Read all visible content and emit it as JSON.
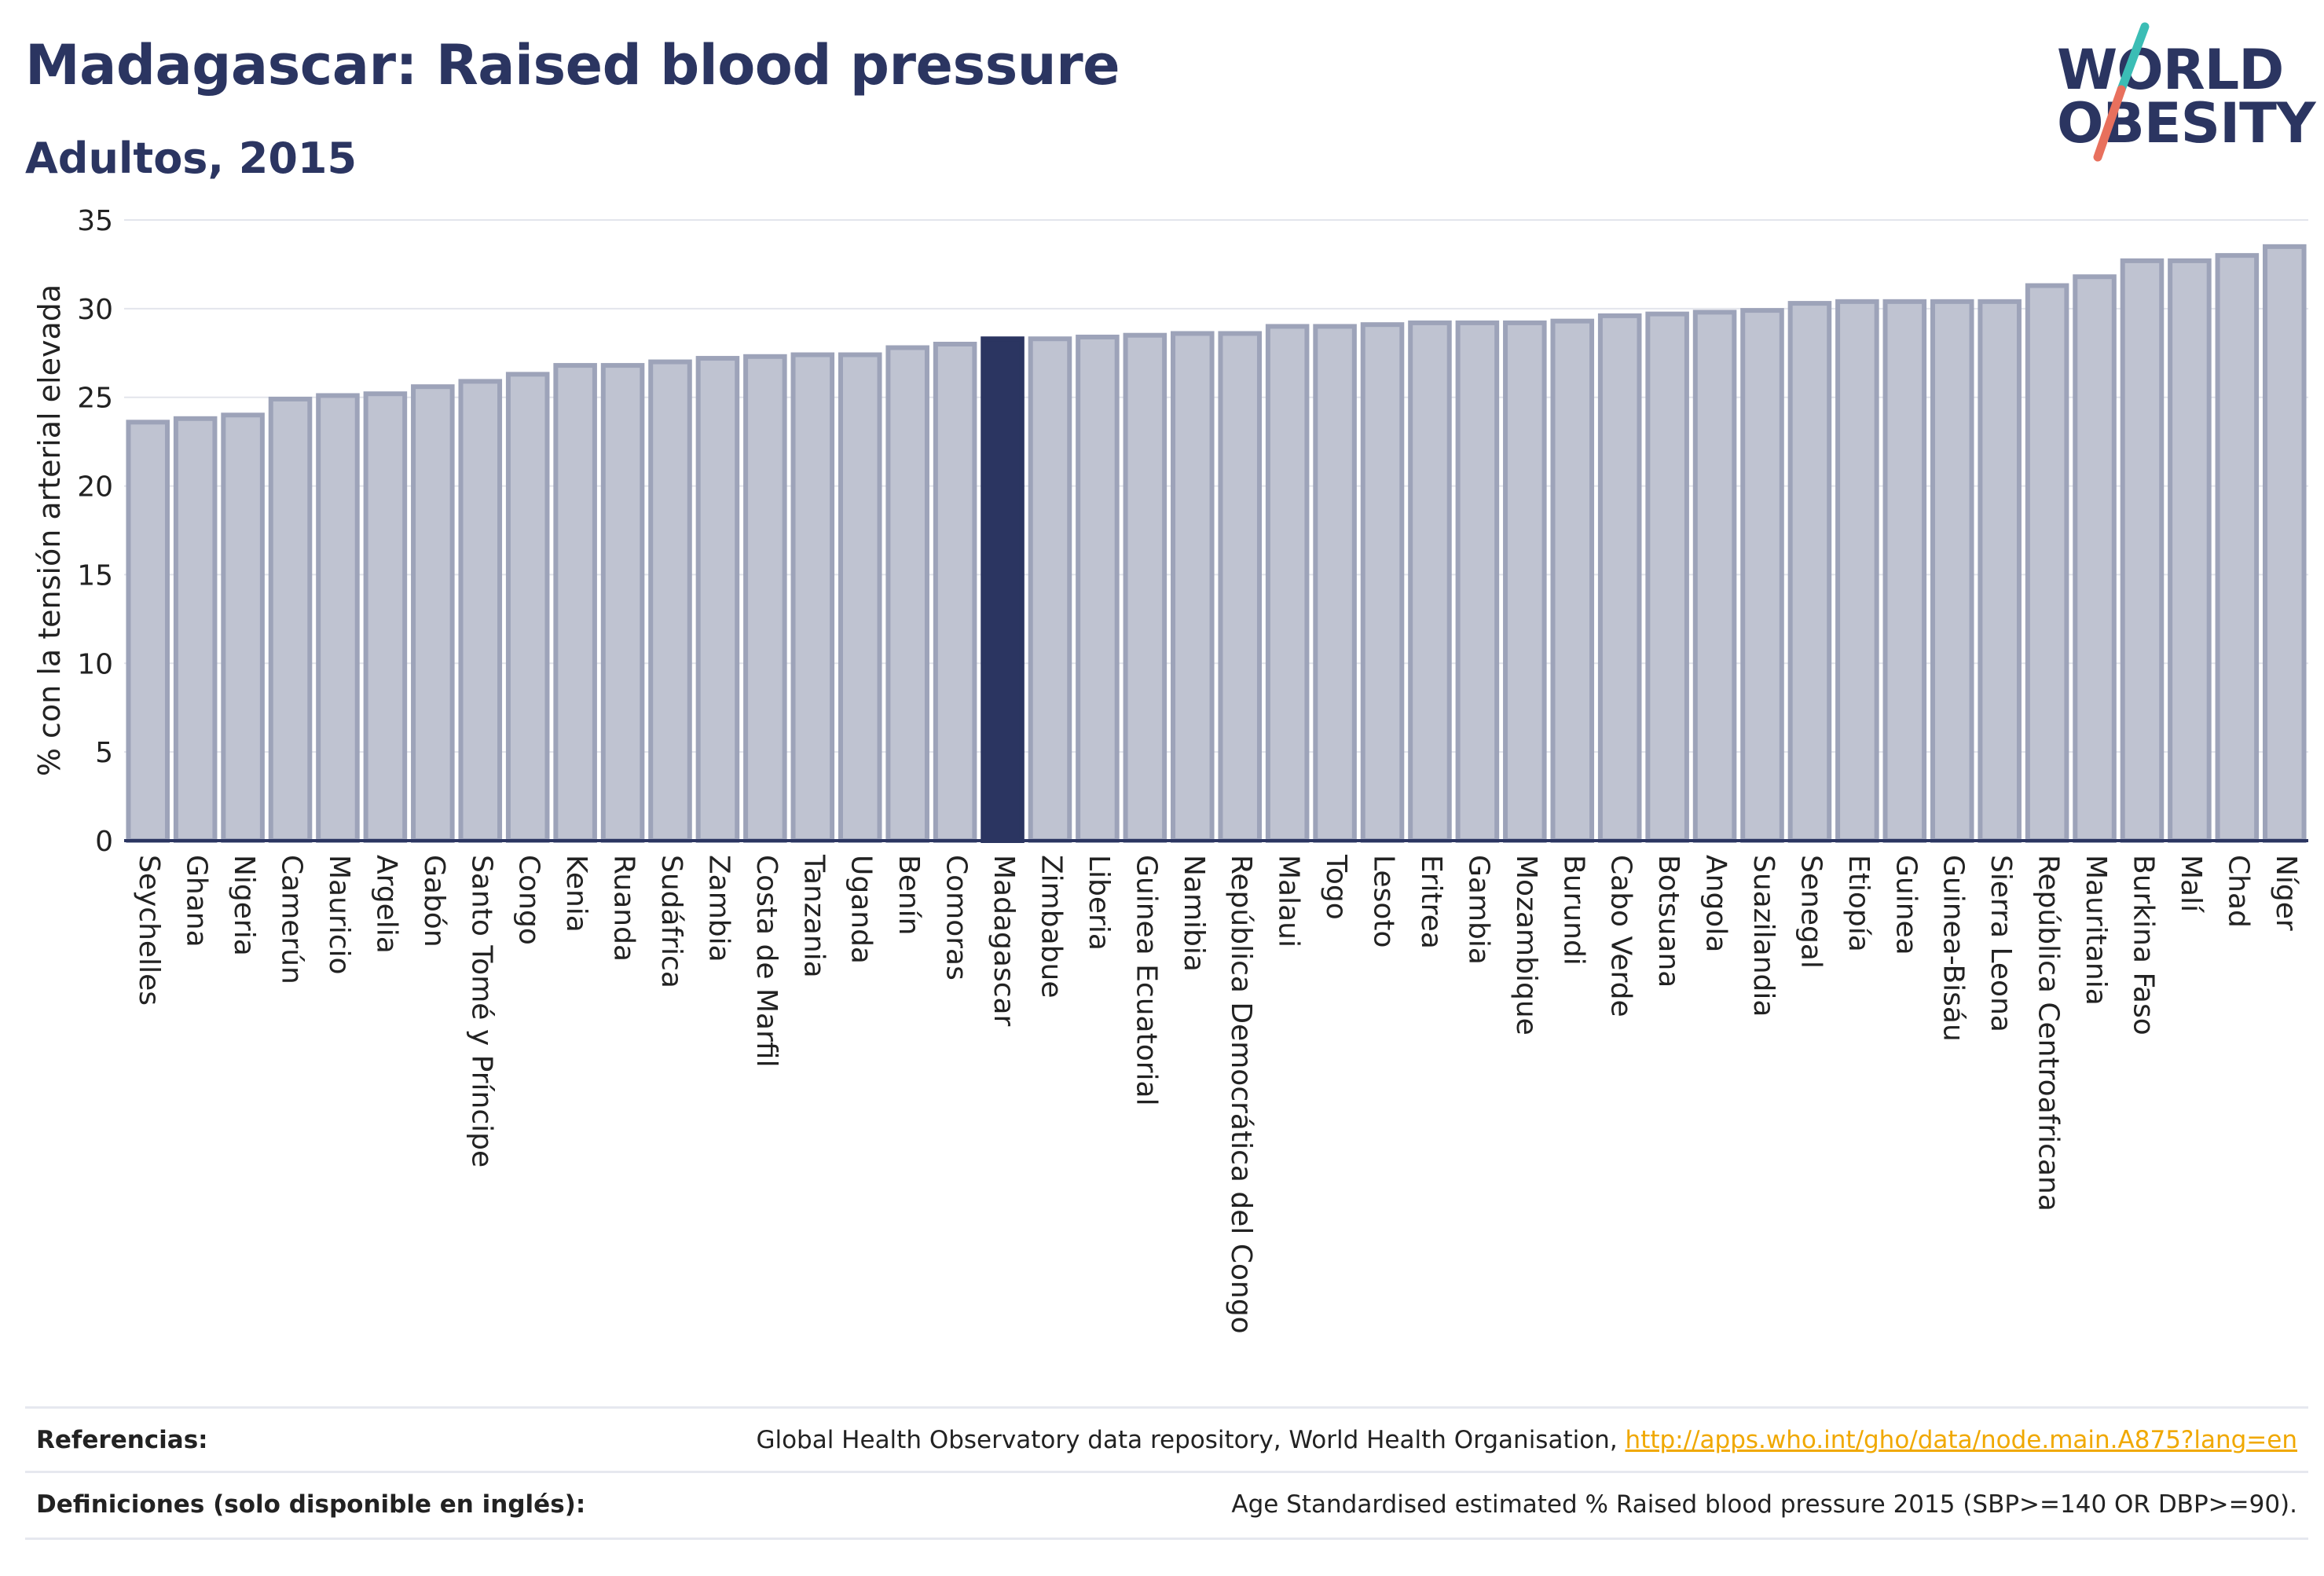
{
  "header": {
    "title": "Madagascar: Raised blood pressure",
    "subtitle": "Adultos, 2015"
  },
  "logo": {
    "line1": "WORLD",
    "line2": "OBESITY",
    "icon": "world-obesity-slash-logo",
    "colors": {
      "text": "#2b3561",
      "slash_top": "#3bbdb5",
      "slash_bottom": "#e8705d"
    }
  },
  "chart_data": {
    "type": "bar",
    "title": "",
    "xlabel": "",
    "ylabel": "% con la tensión arterial elevada",
    "ylim": [
      0,
      35
    ],
    "yticks": [
      0,
      5,
      10,
      15,
      20,
      25,
      30,
      35
    ],
    "grid": true,
    "highlight": "Madagascar",
    "colors": {
      "bar": "#bfc3d1",
      "bar_edge": "#9da3b9",
      "highlight": "#2b3561"
    },
    "categories": [
      "Seychelles",
      "Ghana",
      "Nigeria",
      "Camerún",
      "Mauricio",
      "Argelia",
      "Gabón",
      "Santo Tomé y Príncipe",
      "Congo",
      "Kenia",
      "Ruanda",
      "Sudáfrica",
      "Zambia",
      "Costa de Marfil",
      "Tanzania",
      "Uganda",
      "Benín",
      "Comoras",
      "Madagascar",
      "Zimbabue",
      "Liberia",
      "Guinea Ecuatorial",
      "Namibia",
      "República Democrática del Congo",
      "Malaui",
      "Togo",
      "Lesoto",
      "Eritrea",
      "Gambia",
      "Mozambique",
      "Burundi",
      "Cabo Verde",
      "Botsuana",
      "Angola",
      "Suazilandia",
      "Senegal",
      "Etiopía",
      "Guinea",
      "Guinea-Bisáu",
      "Sierra Leona",
      "República Centroafricana",
      "Mauritania",
      "Burkina Faso",
      "Malí",
      "Chad",
      "Níger"
    ],
    "values": [
      23.6,
      23.8,
      24.0,
      24.9,
      25.1,
      25.2,
      25.6,
      25.9,
      26.3,
      26.8,
      26.8,
      27.0,
      27.2,
      27.3,
      27.4,
      27.4,
      27.8,
      28.0,
      28.3,
      28.3,
      28.4,
      28.5,
      28.6,
      28.6,
      29.0,
      29.0,
      29.1,
      29.2,
      29.2,
      29.2,
      29.3,
      29.6,
      29.7,
      29.8,
      29.9,
      30.3,
      30.4,
      30.4,
      30.4,
      30.4,
      31.3,
      31.8,
      32.7,
      32.7,
      33.0,
      33.5
    ]
  },
  "footer": {
    "references_label": "Referencias:",
    "references_text": "Global Health Observatory data repository, World Health Organisation, ",
    "references_link": "http://apps.who.int/gho/data/node.main.A875?lang=en",
    "definitions_label": "Definiciones (solo disponible en inglés):",
    "definitions_text": "Age Standardised estimated % Raised blood pressure 2015 (SBP>=140 OR DBP>=90)."
  }
}
